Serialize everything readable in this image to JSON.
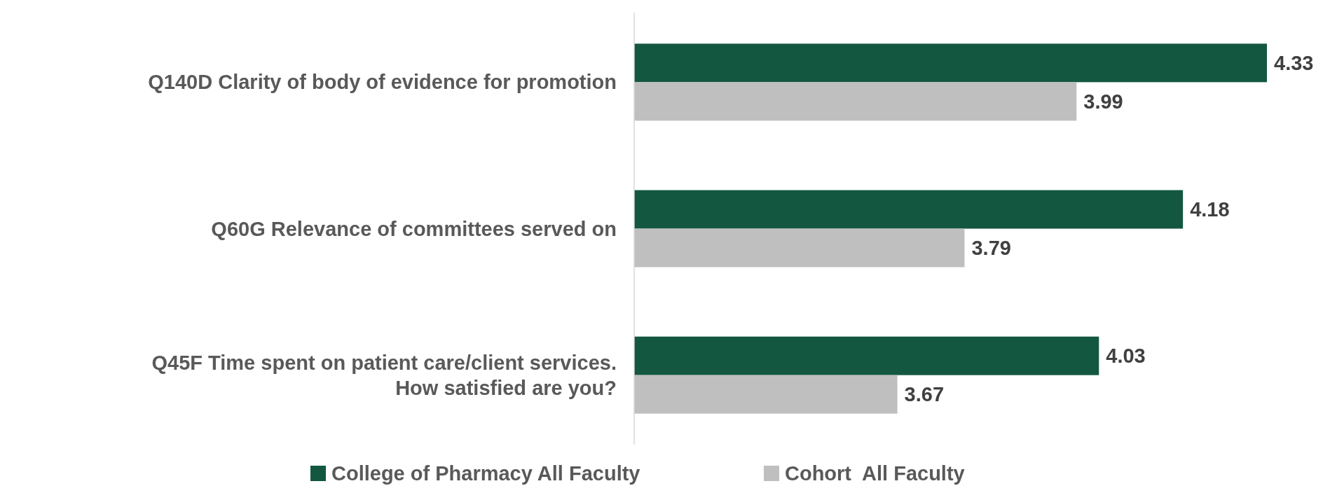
{
  "chart_data": {
    "type": "bar",
    "orientation": "horizontal",
    "categories": [
      "Q140D Clarity of body of evidence for promotion",
      "Q60G Relevance of committees served on",
      "Q45F Time spent on patient care/client services. How satisfied are you?"
    ],
    "series": [
      {
        "name": "College of Pharmacy All Faculty",
        "color": "#135741",
        "values": [
          4.33,
          4.18,
          4.03
        ]
      },
      {
        "name": "Cohort  All Faculty",
        "color": "#bfbfbf",
        "values": [
          3.99,
          3.79,
          3.67
        ]
      }
    ],
    "xlim": [
      3.2,
      4.33
    ],
    "data_labels": true,
    "legend": "bottom"
  }
}
